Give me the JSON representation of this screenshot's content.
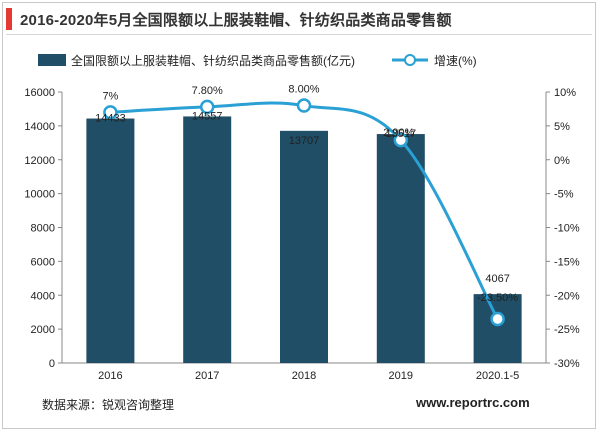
{
  "title": "2016-2020年5月全国限额以上服装鞋帽、针纺织品类商品零售额",
  "footer": {
    "source": "数据来源：锐观咨询整理",
    "website": "www.reportrc.com"
  },
  "colors": {
    "accent": "#e53935",
    "bar": "#1f4e66",
    "line": "#2aa0d4",
    "marker_fill": "#ffffff"
  },
  "chart_data": {
    "type": "bar",
    "title": "2016-2020年5月全国限额以上服装鞋帽、针纺织品类商品零售额",
    "categories": [
      "2016",
      "2017",
      "2018",
      "2019",
      "2020.1-5"
    ],
    "series": [
      {
        "name": "全国限额以上服装鞋帽、针纺织品类商品零售额(亿元)",
        "type": "bar",
        "axis": "left",
        "values": [
          14433,
          14557,
          13707,
          13517,
          4067
        ],
        "labels": [
          "14433",
          "14557",
          "13707",
          "13517",
          "4067"
        ]
      },
      {
        "name": "增速(%)",
        "type": "line",
        "axis": "right",
        "values": [
          7.0,
          7.8,
          8.0,
          2.9,
          -23.5
        ],
        "labels": [
          "7%",
          "7.80%",
          "8.00%",
          "2.90%",
          "-23.50%"
        ]
      }
    ],
    "left_axis": {
      "min": 0,
      "max": 16000,
      "ticks": [
        "0",
        "2000",
        "4000",
        "6000",
        "8000",
        "10000",
        "12000",
        "14000",
        "16000"
      ]
    },
    "right_axis": {
      "min": -30,
      "max": 10,
      "ticks": [
        "-30%",
        "-25%",
        "-20%",
        "-15%",
        "-10%",
        "-5%",
        "0%",
        "5%",
        "10%"
      ]
    },
    "legend_position": "top-center",
    "grid": false
  }
}
